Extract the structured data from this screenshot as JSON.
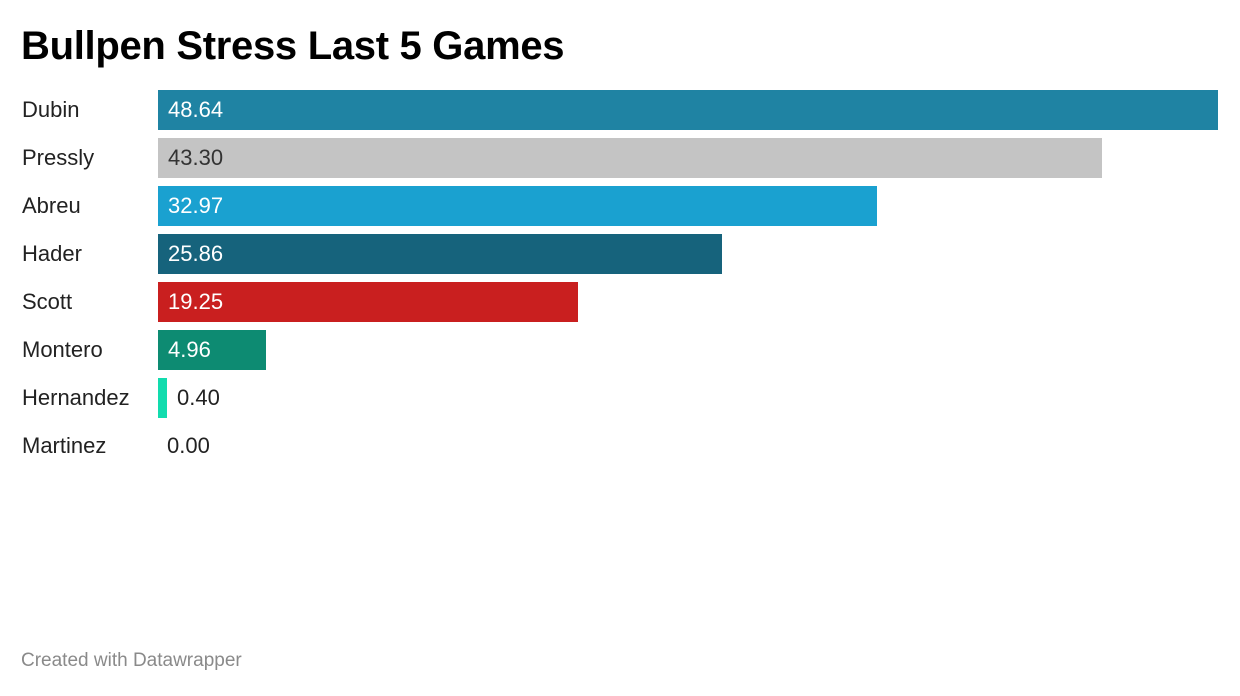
{
  "chart_data": {
    "type": "bar",
    "orientation": "horizontal",
    "title": "Bullpen Stress Last 5 Games",
    "categories": [
      "Dubin",
      "Pressly",
      "Abreu",
      "Hader",
      "Scott",
      "Montero",
      "Hernandez",
      "Martinez"
    ],
    "values": [
      48.64,
      43.3,
      32.97,
      25.86,
      19.25,
      4.96,
      0.4,
      0.0
    ],
    "value_labels": [
      "48.64",
      "43.30",
      "32.97",
      "25.86",
      "19.25",
      "4.96",
      "0.40",
      "0.00"
    ],
    "colors": [
      "#1f83a3",
      "#c4c4c4",
      "#1aa1d0",
      "#16637c",
      "#c91f1f",
      "#0d8b72",
      "#12dcae",
      "#12dcae"
    ],
    "label_colors": [
      "#ffffff",
      "#333333",
      "#ffffff",
      "#ffffff",
      "#ffffff",
      "#ffffff",
      "#222222",
      "#222222"
    ],
    "xlim": [
      0,
      48.64
    ],
    "xlabel": "",
    "ylabel": "",
    "grid": false,
    "legend": "none"
  },
  "footer": {
    "credit": "Created with Datawrapper"
  }
}
